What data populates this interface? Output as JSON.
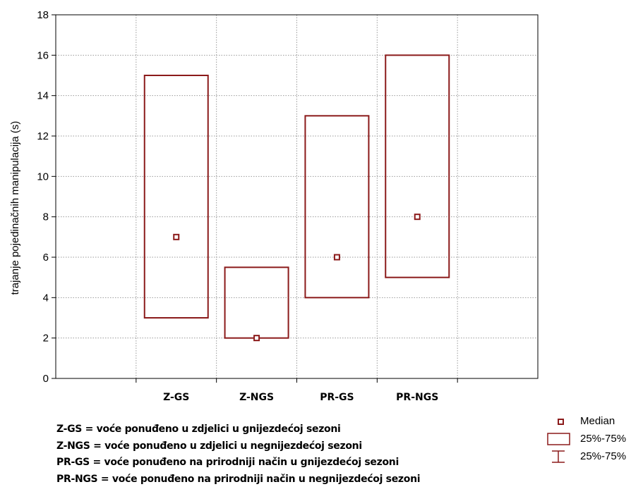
{
  "chart_data": {
    "type": "box",
    "categories": [
      "Z-GS",
      "Z-NGS",
      "PR-GS",
      "PR-NGS"
    ],
    "series": [
      {
        "median": [
          7,
          2,
          6,
          8
        ],
        "q1": [
          3,
          2,
          4,
          5
        ],
        "q3": [
          15,
          5.5,
          13,
          16
        ]
      }
    ],
    "ylabel": "trajanje pojedinačnih manipulacija (s)",
    "ylim": [
      0,
      18
    ],
    "yticks": [
      0,
      2,
      4,
      6,
      8,
      10,
      12,
      14,
      16,
      18
    ],
    "grid": true,
    "colors": {
      "box": "#8b1a1a",
      "grid": "#9a9a9a",
      "axis": "#000000"
    }
  },
  "legend": {
    "placement": "bottom-right",
    "items": [
      {
        "label": "Median",
        "symbol": "median-marker"
      },
      {
        "label": "25%-75%",
        "symbol": "box"
      },
      {
        "label": "25%-75%",
        "symbol": "whisker"
      }
    ]
  },
  "footnotes": [
    "Z-GS = voće ponuđeno u zdjelici u gnijezdećoj sezoni",
    "Z-NGS = voće ponuđeno u zdjelici u negnijezdećoj sezoni",
    "PR-GS = voće ponuđeno na prirodniji način u gnijezdećoj sezoni",
    "PR-NGS = voće ponuđeno na prirodniji način u negnijezdećoj sezoni"
  ]
}
